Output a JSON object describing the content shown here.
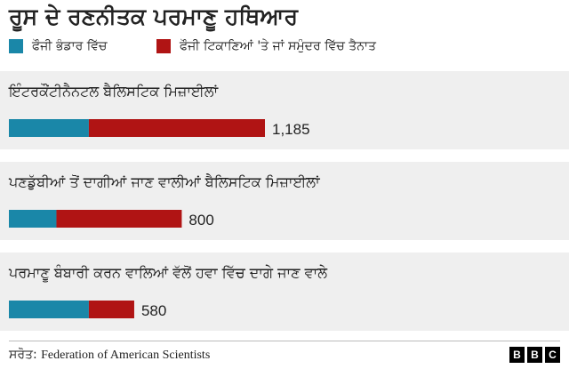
{
  "chart_data": {
    "type": "bar",
    "stacked": true,
    "orientation": "horizontal",
    "title": "ਰੂਸ ਦੇ ਰਣਨੀਤਕ ਪਰਮਾਣੂ ਹਥਿਆਰ",
    "categories": [
      "ਇੰਟਰਕੌਂਟੀਨੈਨਟਲ ਬੈਲਿਸਟਿਕ ਮਿਜ਼ਾਈਲਾਂ",
      "ਪਣਡੁੱਬੀਆਂ ਤੋਂ ਦਾਗੀਆਂ ਜਾਣ ਵਾਲੀਆਂ ਬੈਲਿਸਟਿਕ ਮਿਜ਼ਾਈਲਾਂ",
      "ਪਰਮਾਣੂ ਬੰਬਾਰੀ ਕਰਨ ਵਾਲਿਆਂ ਵੱਲੋਂ ਹਵਾ ਵਿੱਚ ਦਾਗੇ ਜਾਣ ਵਾਲੇ"
    ],
    "series": [
      {
        "name": "ਫੌਜੀ ਭੰਡਾਰ ਵਿੱਚ",
        "color": "#1a87a8",
        "values": [
          370,
          220,
          370
        ]
      },
      {
        "name": "ਫੌਜੀ ਟਿਕਾਣਿਆਂ 'ਤੇ ਜਾਂ ਸਮੁੰਦਰ ਵਿੱਚ ਤੈਨਾਤ",
        "color": "#b01414",
        "values": [
          815,
          580,
          210
        ]
      }
    ],
    "totals": [
      "1,185",
      "800",
      "580"
    ],
    "xlim": [
      0,
      1185
    ],
    "legend_position": "top-left",
    "grid": false
  },
  "source": {
    "label": "ਸਰੋਤ:",
    "value": "Federation of American Scientists"
  },
  "logo": [
    "B",
    "B",
    "C"
  ],
  "colors": {
    "band": "#efefef",
    "text": "#222222"
  }
}
